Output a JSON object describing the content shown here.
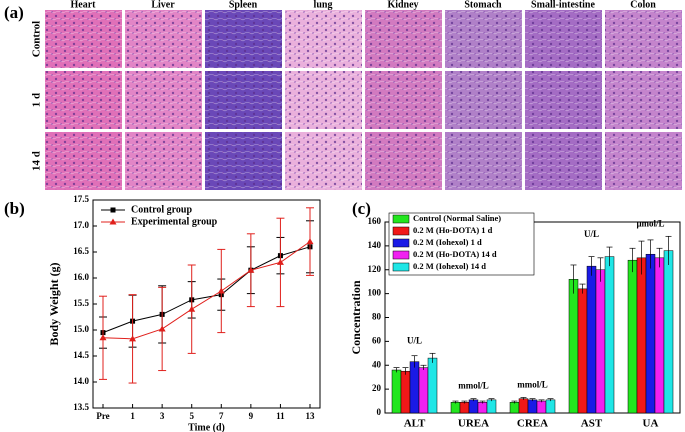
{
  "figure": {
    "panel_labels": [
      "(a)",
      "(b)",
      "(c)"
    ],
    "histology": {
      "columns": [
        "Heart",
        "Liver",
        "Spleen",
        "lung",
        "Kidney",
        "Stomach",
        "Small-intestine",
        "Colon"
      ],
      "rows": [
        "Control",
        "1 d",
        "14 d"
      ]
    }
  },
  "chart_data": [
    {
      "type": "line",
      "xlabel": "Time (d)",
      "ylabel": "Body Weight (g)",
      "categories": [
        "Pre",
        "1",
        "3",
        "5",
        "7",
        "9",
        "11",
        "13"
      ],
      "series": [
        {
          "name": "Control group",
          "color": "#000000",
          "marker": "square",
          "values": [
            14.95,
            15.17,
            15.3,
            15.58,
            15.68,
            16.15,
            16.43,
            16.6
          ],
          "errors": [
            0.3,
            0.5,
            0.55,
            0.35,
            0.3,
            0.45,
            0.35,
            0.5
          ]
        },
        {
          "name": "Experimental group",
          "color": "#e0201c",
          "marker": "triangle",
          "values": [
            14.85,
            14.83,
            15.02,
            15.4,
            15.75,
            16.15,
            16.3,
            16.7
          ],
          "errors": [
            0.8,
            0.85,
            0.8,
            0.85,
            0.8,
            0.7,
            0.85,
            0.65
          ]
        }
      ],
      "ylim": [
        13.5,
        17.5
      ],
      "yticks": [
        13.5,
        {
          "value": 14,
          "label": "14.0"
        },
        14.5,
        {
          "value": 15,
          "label": "15.0"
        },
        15.5,
        {
          "value": 16,
          "label": "16.0"
        },
        16.5,
        {
          "value": 17,
          "label": "17.0"
        },
        17.5
      ],
      "legend": "upper left"
    },
    {
      "type": "bar",
      "ylabel": "Concentration",
      "categories": [
        "ALT",
        "UREA",
        "CREA",
        "AST",
        "UA"
      ],
      "series": [
        {
          "name": "Control (Normal Saline)",
          "color": "#22e61e",
          "values": [
            36,
            9,
            9,
            112,
            128
          ],
          "errors": [
            2,
            1,
            1,
            12,
            10
          ]
        },
        {
          "name": "0.2 M (Ho-DOTA) 1 d",
          "color": "#f01818",
          "values": [
            35,
            9,
            12,
            104,
            130
          ],
          "errors": [
            3,
            1,
            1,
            4,
            14
          ]
        },
        {
          "name": "0.2 M (Iohexol) 1 d",
          "color": "#1a1ae6",
          "values": [
            43,
            11,
            11,
            123,
            133
          ],
          "errors": [
            5,
            1,
            1,
            8,
            12
          ]
        },
        {
          "name": "0.2 M (Ho-DOTA) 14 d",
          "color": "#f020f0",
          "values": [
            38,
            9,
            10,
            120,
            130
          ],
          "errors": [
            2,
            1,
            1,
            10,
            8
          ]
        },
        {
          "name": "0.2 M (Iohexol) 14 d",
          "color": "#20e6e6",
          "values": [
            46,
            11,
            11,
            131,
            136
          ],
          "errors": [
            4,
            1,
            1,
            8,
            12
          ]
        }
      ],
      "annotations": [
        "U/L",
        "mmol/L",
        "mmol/L",
        "U/L",
        "μmol/L"
      ],
      "ylim": [
        0,
        160
      ],
      "yticks": [
        0,
        20,
        40,
        60,
        80,
        100,
        120,
        140,
        160
      ],
      "legend": "upper left"
    }
  ]
}
